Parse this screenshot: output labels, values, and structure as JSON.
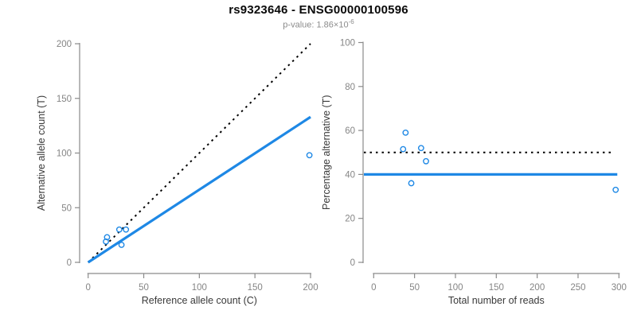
{
  "header": {
    "title": "rs9323646 - ENSG00000100596",
    "subtitle_prefix": "p-value: 1.86×10",
    "subtitle_exponent": "-6"
  },
  "colors": {
    "accent_blue": "#1E88E5",
    "dotted_black": "#000000",
    "axis_gray": "#8a8a8a",
    "tick_label_gray": "#858585",
    "axis_title_dark": "#3a3a3a"
  },
  "chart_data": [
    {
      "type": "scatter",
      "name": "allele-count-scatter",
      "xlabel": "Reference allele count (C)",
      "ylabel": "Alternative allele count (T)",
      "xlim": [
        0,
        200
      ],
      "ylim": [
        0,
        200
      ],
      "xticks": [
        0,
        50,
        100,
        150,
        200
      ],
      "yticks": [
        0,
        50,
        100,
        150,
        200
      ],
      "grid": false,
      "legend": null,
      "points": [
        [
          16,
          19
        ],
        [
          17,
          23
        ],
        [
          28,
          30
        ],
        [
          30,
          16
        ],
        [
          34,
          30
        ],
        [
          199,
          98
        ]
      ],
      "lines": [
        {
          "name": "identity-line",
          "style": "dotted",
          "color": "#000000",
          "points": [
            [
              0,
              0
            ],
            [
              200,
              200
            ]
          ]
        },
        {
          "name": "fit-line",
          "style": "solid",
          "color": "#1E88E5",
          "points": [
            [
              0,
              0
            ],
            [
              200,
              133
            ]
          ]
        }
      ]
    },
    {
      "type": "scatter",
      "name": "percentage-scatter",
      "xlabel": "Total number of reads",
      "ylabel": "Percentage alternative (T)",
      "xlim": [
        0,
        300
      ],
      "ylim": [
        0,
        100
      ],
      "xticks": [
        0,
        50,
        100,
        150,
        200,
        250,
        300
      ],
      "yticks": [
        0,
        20,
        40,
        60,
        80,
        100
      ],
      "grid": false,
      "legend": null,
      "points": [
        [
          36,
          51.5
        ],
        [
          39,
          59
        ],
        [
          46,
          36
        ],
        [
          58,
          52
        ],
        [
          64,
          46
        ],
        [
          296,
          33
        ]
      ],
      "lines": [
        {
          "name": "expected-line",
          "style": "dotted",
          "color": "#000000",
          "points": [
            [
              -12,
              50
            ],
            [
              291,
              50
            ]
          ]
        },
        {
          "name": "fit-line",
          "style": "solid",
          "color": "#1E88E5",
          "points": [
            [
              -12,
              40
            ],
            [
              298,
              40
            ]
          ]
        }
      ]
    }
  ]
}
